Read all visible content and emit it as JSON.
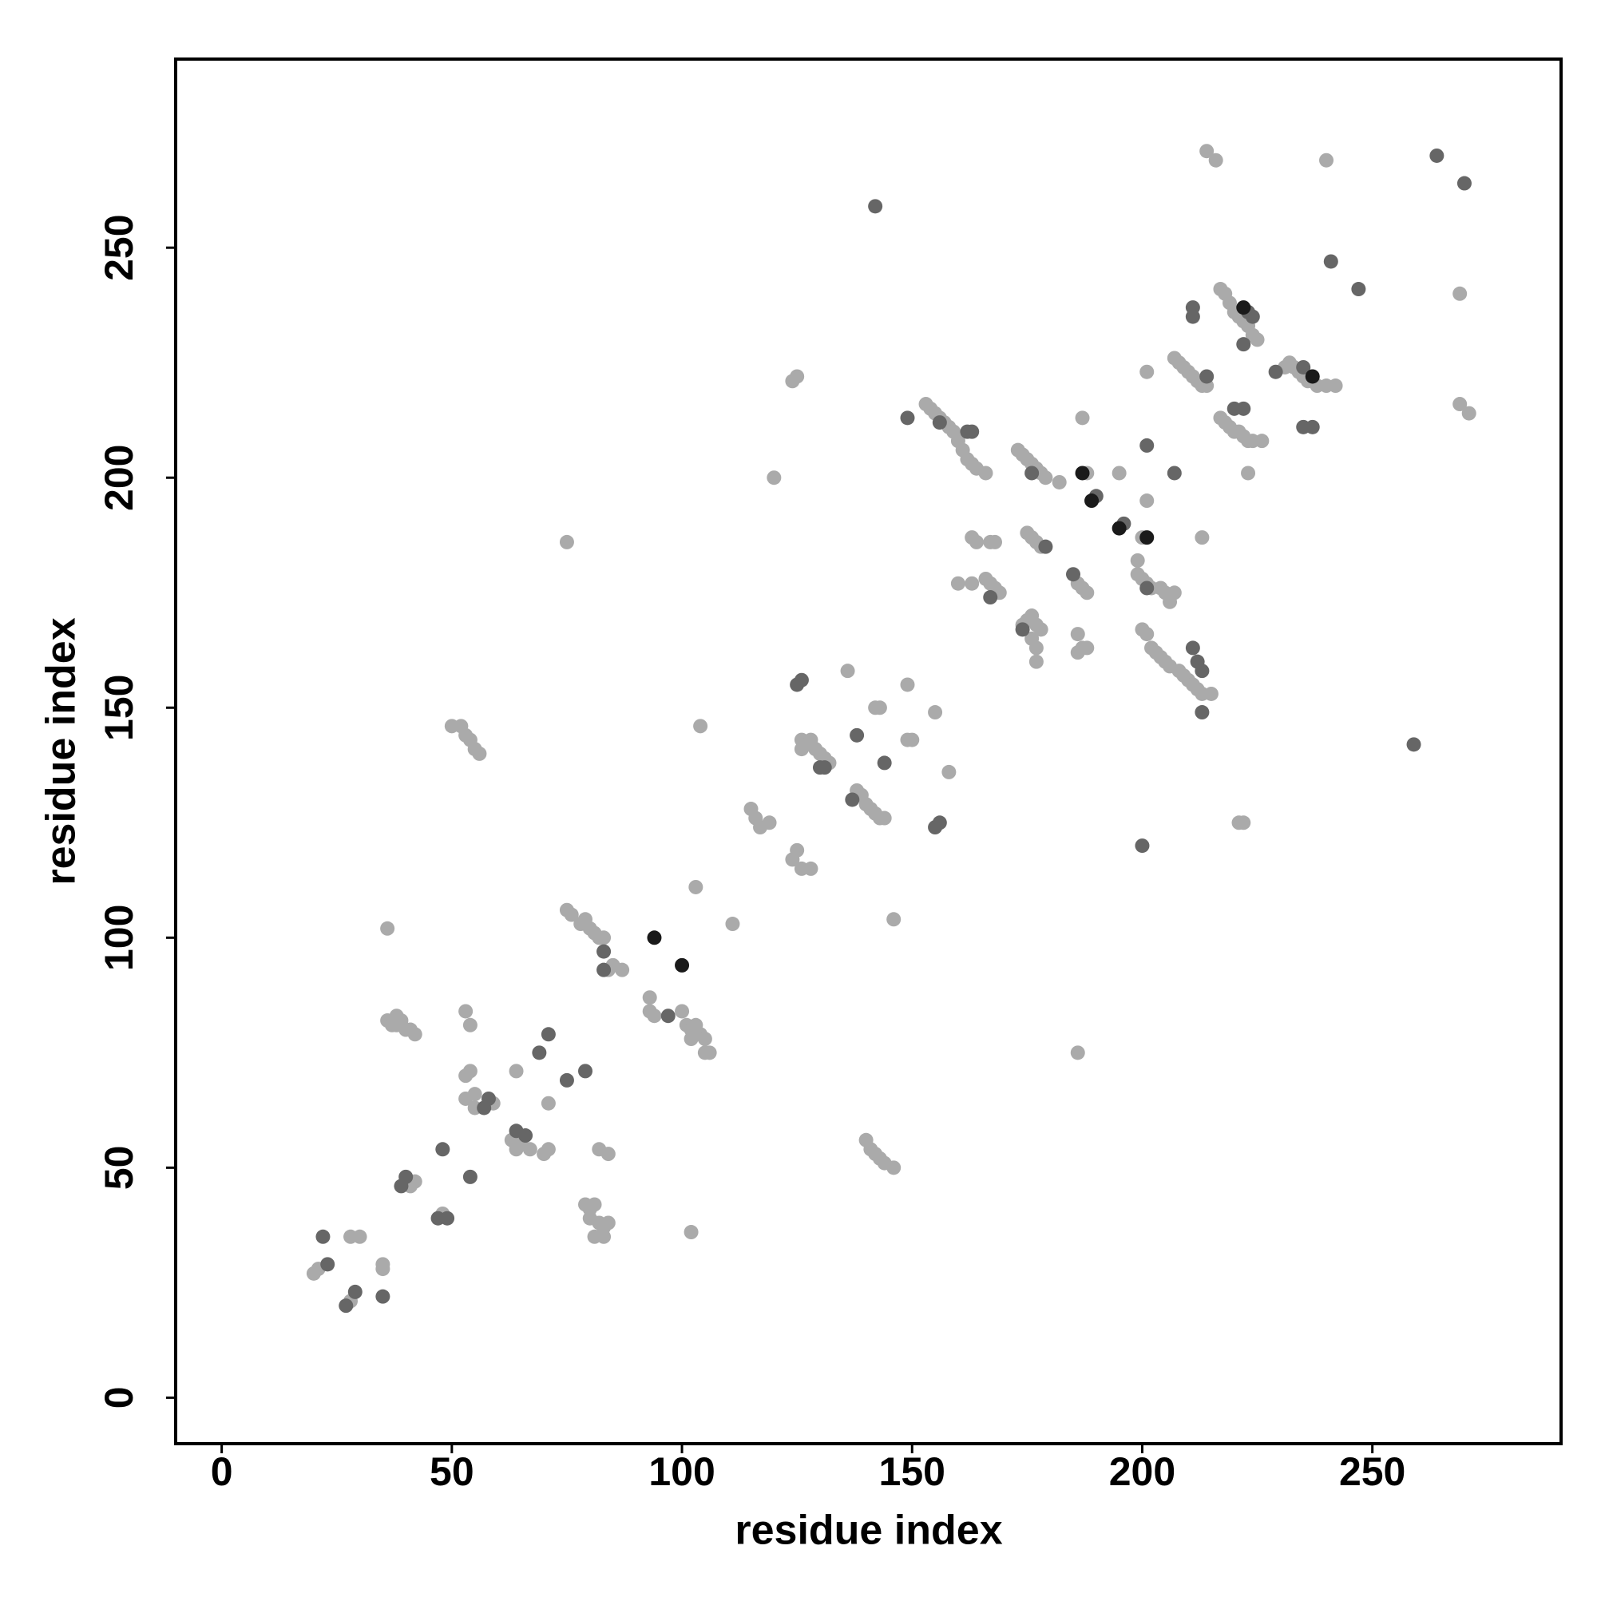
{
  "chart_data": {
    "type": "scatter",
    "xlabel": "residue index",
    "ylabel": "residue index",
    "xlim": [
      -10,
      291
    ],
    "ylim": [
      -10,
      291
    ],
    "xticks": [
      0,
      50,
      100,
      150,
      200,
      250
    ],
    "yticks": [
      0,
      50,
      100,
      150,
      200,
      250
    ],
    "grid": false,
    "series": [
      {
        "color": "#aaaaaa",
        "x": [
          20,
          21,
          28,
          28,
          30,
          35,
          35,
          36,
          37,
          38,
          39,
          40,
          41,
          42,
          38,
          36,
          40,
          41,
          42,
          48,
          53,
          54,
          53,
          54,
          55,
          53,
          55,
          59,
          64,
          63,
          64,
          65,
          67,
          70,
          71,
          71,
          75,
          75,
          76,
          78,
          79,
          80,
          81,
          82,
          83,
          84,
          85,
          87,
          79,
          80,
          81,
          80,
          82,
          83,
          84,
          81,
          83,
          82,
          84,
          93,
          93,
          94,
          100,
          101,
          102,
          103,
          104,
          105,
          106,
          105,
          102,
          103,
          104,
          111,
          102,
          115,
          116,
          117,
          119,
          125,
          124,
          126,
          128,
          124,
          125,
          120,
          126,
          127,
          128,
          129,
          130,
          131,
          132,
          126,
          136,
          138,
          139,
          140,
          141,
          142,
          143,
          144,
          142,
          143,
          149,
          150,
          149,
          155,
          158,
          146,
          140,
          141,
          142,
          143,
          144,
          146,
          52,
          53,
          54,
          55,
          56,
          50,
          153,
          154,
          155,
          156,
          157,
          158,
          159,
          160,
          161,
          162,
          163,
          164,
          166,
          160,
          163,
          163,
          164,
          166,
          167,
          168,
          169,
          167,
          168,
          173,
          174,
          175,
          176,
          177,
          178,
          179,
          182,
          175,
          176,
          177,
          178,
          174,
          175,
          176,
          177,
          178,
          176,
          177,
          177,
          186,
          187,
          188,
          186,
          186,
          187,
          188,
          188,
          187,
          195,
          200,
          201,
          201,
          186,
          199,
          199,
          200,
          201,
          202,
          204,
          205,
          206,
          207,
          200,
          201,
          202,
          203,
          204,
          205,
          206,
          208,
          209,
          210,
          211,
          212,
          213,
          215,
          213,
          207,
          208,
          209,
          210,
          211,
          212,
          213,
          214,
          217,
          218,
          219,
          220,
          221,
          222,
          223,
          224,
          225,
          217,
          218,
          219,
          220,
          221,
          222,
          223,
          224,
          226,
          223,
          221,
          222,
          214,
          216,
          231,
          232,
          233,
          234,
          235,
          236,
          238,
          240,
          242,
          240,
          269,
          269,
          271
        ],
        "values": [
          27,
          28,
          21,
          35,
          35,
          29,
          28,
          82,
          81,
          83,
          82,
          80,
          80,
          79,
          81,
          102,
          47,
          46,
          47,
          40,
          84,
          81,
          70,
          71,
          66,
          65,
          63,
          64,
          71,
          56,
          54,
          55,
          54,
          53,
          54,
          64,
          186,
          106,
          105,
          103,
          104,
          102,
          101,
          100,
          100,
          93,
          94,
          93,
          42,
          41,
          42,
          39,
          38,
          37,
          38,
          35,
          35,
          54,
          53,
          87,
          84,
          83,
          84,
          81,
          80,
          81,
          79,
          78,
          75,
          75,
          78,
          111,
          146,
          103,
          36,
          128,
          126,
          124,
          125,
          119,
          117,
          115,
          115,
          221,
          222,
          200,
          143,
          142,
          143,
          141,
          140,
          139,
          138,
          141,
          158,
          132,
          131,
          129,
          128,
          127,
          126,
          126,
          150,
          150,
          155,
          143,
          143,
          149,
          136,
          104,
          56,
          54,
          53,
          52,
          51,
          50,
          146,
          144,
          143,
          141,
          140,
          146,
          216,
          215,
          214,
          213,
          212,
          211,
          210,
          208,
          206,
          204,
          203,
          202,
          201,
          177,
          177,
          187,
          186,
          178,
          177,
          176,
          175,
          186,
          186,
          206,
          205,
          204,
          203,
          202,
          201,
          200,
          199,
          188,
          187,
          186,
          185,
          168,
          169,
          170,
          168,
          167,
          165,
          163,
          160,
          177,
          176,
          175,
          166,
          162,
          163,
          163,
          201,
          213,
          201,
          187,
          195,
          223,
          75,
          182,
          179,
          178,
          177,
          176,
          176,
          175,
          173,
          175,
          167,
          166,
          163,
          162,
          161,
          160,
          159,
          158,
          157,
          156,
          155,
          154,
          153,
          153,
          187,
          226,
          225,
          224,
          223,
          222,
          221,
          220,
          220,
          241,
          240,
          238,
          236,
          235,
          234,
          233,
          231,
          230,
          213,
          212,
          211,
          210,
          210,
          209,
          208,
          208,
          208,
          201,
          125,
          125,
          271,
          269,
          224,
          225,
          224,
          223,
          222,
          221,
          220,
          220,
          220,
          269,
          240,
          216,
          214
        ]
      },
      {
        "color": "#666666",
        "x": [
          22,
          23,
          27,
          29,
          35,
          39,
          40,
          47,
          49,
          48,
          57,
          58,
          54,
          66,
          64,
          69,
          71,
          75,
          79,
          83,
          83,
          97,
          125,
          126,
          130,
          131,
          138,
          144,
          137,
          155,
          156,
          142,
          149,
          156,
          162,
          163,
          167,
          176,
          179,
          174,
          185,
          190,
          196,
          201,
          207,
          200,
          201,
          211,
          212,
          213,
          213,
          214,
          211,
          211,
          223,
          224,
          222,
          220,
          222,
          229,
          235,
          235,
          237,
          241,
          247,
          264,
          270,
          259
        ],
        "values": [
          35,
          29,
          20,
          23,
          22,
          46,
          48,
          39,
          39,
          54,
          63,
          65,
          48,
          57,
          58,
          75,
          79,
          69,
          71,
          97,
          93,
          83,
          155,
          156,
          137,
          137,
          144,
          138,
          130,
          124,
          125,
          259,
          213,
          212,
          210,
          210,
          174,
          201,
          185,
          167,
          179,
          196,
          190,
          207,
          201,
          120,
          176,
          163,
          160,
          158,
          149,
          222,
          237,
          235,
          236,
          235,
          229,
          215,
          215,
          223,
          224,
          211,
          211,
          247,
          241,
          270,
          264,
          142
        ]
      },
      {
        "color": "#1a1a1a",
        "x": [
          94,
          100,
          187,
          189,
          195,
          201,
          222,
          237
        ],
        "values": [
          100,
          94,
          201,
          195,
          189,
          187,
          237,
          222
        ]
      }
    ]
  }
}
